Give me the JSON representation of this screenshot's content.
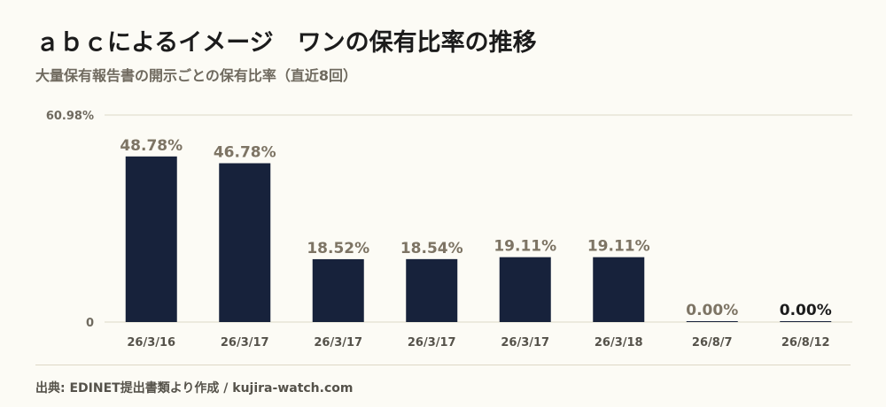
{
  "title": "ａｂｃによるイメージ　ワンの保有比率の推移",
  "subtitle": "大量保有報告書の開示ごとの保有比率（直近8回）",
  "source": "出典: EDINET提出書類より作成 / kujira-watch.com",
  "colors": {
    "bar": "#17223b",
    "background": "#fcfbf5",
    "gridline": "#ddd8c6"
  },
  "chart_data": {
    "type": "bar",
    "categories": [
      "26/3/16",
      "26/3/17",
      "26/3/17",
      "26/3/17",
      "26/3/17",
      "26/3/18",
      "26/8/7",
      "26/8/12"
    ],
    "values": [
      48.78,
      46.78,
      18.52,
      18.54,
      19.11,
      19.11,
      0.0,
      0.0
    ],
    "value_labels": [
      "48.78%",
      "46.78%",
      "18.52%",
      "18.54%",
      "19.11%",
      "19.11%",
      "0.00%",
      "0.00%"
    ],
    "ylim": [
      0,
      60.98
    ],
    "yticks": [
      "0",
      "60.98%"
    ],
    "grid": true
  }
}
